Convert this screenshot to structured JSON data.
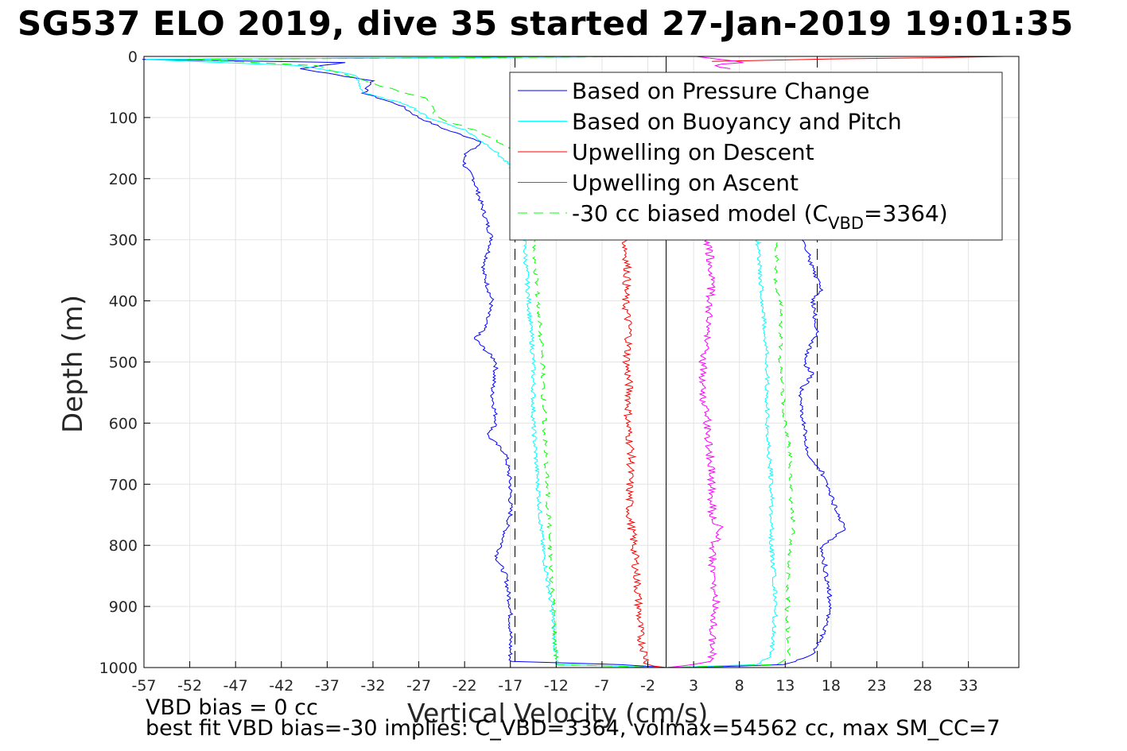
{
  "title": "SG537 ELO 2019, dive 35 started 27-Jan-2019 19:01:35",
  "notes": {
    "line1": "VBD bias = 0 cc",
    "line2": "best fit VBD bias=-30 implies: C_VBD=3364, volmax=54562 cc, max SM_CC=7"
  },
  "chart_data": {
    "type": "line",
    "xlabel": "Vertical Velocity (cm/s)",
    "ylabel": "Depth (m)",
    "xlim": [
      -57,
      38.5
    ],
    "ylim": [
      0,
      1000
    ],
    "y_reversed": true,
    "xticks": [
      -57,
      -52,
      -47,
      -42,
      -37,
      -32,
      -27,
      -22,
      -17,
      -12,
      -7,
      -2,
      3,
      8,
      13,
      18,
      23,
      28,
      33
    ],
    "yticks": [
      0,
      100,
      200,
      300,
      400,
      500,
      600,
      700,
      800,
      900,
      1000
    ],
    "grid": true,
    "legend_position": "top-right",
    "reference_lines": {
      "dashed_x": [
        -16.5,
        16.5
      ],
      "solid_x": [
        0
      ]
    },
    "legend": [
      {
        "label": "Based on Pressure Change",
        "color": "#0000ff",
        "dash": false
      },
      {
        "label": "Based on Buoyancy and Pitch",
        "color": "#00ffff",
        "dash": false
      },
      {
        "label": "Upwelling on Descent",
        "color": "#ff0000",
        "dash": false
      },
      {
        "label": "Upwelling on Ascent",
        "color": "#ff00ff",
        "dash": false
      },
      {
        "label": "-30 cc biased model (C",
        "sub": "VBD",
        "suffix": "=3364)",
        "color": "#00ff00",
        "dash": true
      }
    ],
    "series": [
      {
        "name": "Based on Pressure Change",
        "color": "#0000ff",
        "dash": false,
        "descent": [
          [
            0,
            0
          ],
          [
            5,
            -57
          ],
          [
            10,
            -35
          ],
          [
            20,
            -40
          ],
          [
            40,
            -32
          ],
          [
            60,
            -33
          ],
          [
            80,
            -29
          ],
          [
            100,
            -27
          ],
          [
            120,
            -24
          ],
          [
            140,
            -20
          ],
          [
            160,
            -22
          ],
          [
            180,
            -22
          ],
          [
            200,
            -21
          ],
          [
            250,
            -20
          ],
          [
            300,
            -19
          ],
          [
            350,
            -20
          ],
          [
            400,
            -19
          ],
          [
            450,
            -20
          ],
          [
            460,
            -21
          ],
          [
            500,
            -18.5
          ],
          [
            550,
            -19
          ],
          [
            600,
            -18.5
          ],
          [
            620,
            -19.5
          ],
          [
            650,
            -17.5
          ],
          [
            700,
            -17
          ],
          [
            750,
            -17
          ],
          [
            800,
            -18
          ],
          [
            820,
            -18.5
          ],
          [
            850,
            -17.5
          ],
          [
            900,
            -17
          ],
          [
            950,
            -17
          ],
          [
            990,
            -17
          ],
          [
            995,
            -5
          ],
          [
            1000,
            0
          ]
        ],
        "ascent": [
          [
            1000,
            0
          ],
          [
            998,
            7
          ],
          [
            995,
            13
          ],
          [
            980,
            16
          ],
          [
            950,
            17
          ],
          [
            900,
            18
          ],
          [
            850,
            17.5
          ],
          [
            800,
            17
          ],
          [
            775,
            19.5
          ],
          [
            740,
            18.5
          ],
          [
            700,
            17.5
          ],
          [
            680,
            17
          ],
          [
            650,
            15.5
          ],
          [
            600,
            15
          ],
          [
            550,
            14.5
          ],
          [
            520,
            16
          ],
          [
            500,
            15
          ],
          [
            450,
            16.5
          ],
          [
            400,
            16
          ],
          [
            380,
            17
          ],
          [
            350,
            16
          ],
          [
            320,
            15.5
          ],
          [
            300,
            14.8
          ]
        ]
      },
      {
        "name": "Based on Buoyancy and Pitch",
        "color": "#00ffff",
        "dash": false,
        "descent": [
          [
            0,
            0
          ],
          [
            5,
            -57
          ],
          [
            15,
            -40
          ],
          [
            30,
            -34
          ],
          [
            60,
            -33
          ],
          [
            80,
            -28
          ],
          [
            100,
            -26
          ],
          [
            120,
            -22
          ],
          [
            150,
            -19
          ],
          [
            180,
            -17
          ],
          [
            200,
            -16.5
          ],
          [
            250,
            -16
          ],
          [
            300,
            -15.5
          ],
          [
            400,
            -15
          ],
          [
            500,
            -14.5
          ],
          [
            600,
            -14.5
          ],
          [
            700,
            -14
          ],
          [
            800,
            -13.5
          ],
          [
            850,
            -13
          ],
          [
            900,
            -12.5
          ],
          [
            950,
            -12.2
          ],
          [
            995,
            -12
          ],
          [
            1000,
            0
          ]
        ],
        "ascent": [
          [
            1000,
            0
          ],
          [
            995,
            10
          ],
          [
            980,
            11.5
          ],
          [
            900,
            12
          ],
          [
            800,
            11.5
          ],
          [
            700,
            11.5
          ],
          [
            600,
            11
          ],
          [
            500,
            11
          ],
          [
            400,
            10.5
          ],
          [
            300,
            10
          ]
        ]
      },
      {
        "name": "Upwelling on Descent",
        "color": "#ff0000",
        "dash": false,
        "descent": [
          [
            300,
            -4.5
          ],
          [
            350,
            -4.2
          ],
          [
            400,
            -4.5
          ],
          [
            450,
            -4
          ],
          [
            500,
            -4.3
          ],
          [
            550,
            -4
          ],
          [
            600,
            -4.2
          ],
          [
            650,
            -3.8
          ],
          [
            700,
            -4
          ],
          [
            750,
            -4
          ],
          [
            800,
            -3.5
          ],
          [
            850,
            -3.2
          ],
          [
            900,
            -3
          ],
          [
            950,
            -2.8
          ],
          [
            995,
            -2
          ],
          [
            1000,
            0
          ]
        ],
        "top": [
          [
            0,
            37
          ],
          [
            2,
            30
          ],
          [
            4,
            18
          ],
          [
            6,
            12
          ],
          [
            8,
            5
          ]
        ]
      },
      {
        "name": "Upwelling on Ascent",
        "color": "#ff00ff",
        "dash": false,
        "ascent": [
          [
            1000,
            0
          ],
          [
            995,
            3
          ],
          [
            990,
            5
          ],
          [
            950,
            5
          ],
          [
            900,
            5.5
          ],
          [
            850,
            5
          ],
          [
            800,
            5.2
          ],
          [
            775,
            6
          ],
          [
            750,
            5
          ],
          [
            700,
            5
          ],
          [
            650,
            4.8
          ],
          [
            600,
            4.5
          ],
          [
            550,
            4
          ],
          [
            500,
            4
          ],
          [
            450,
            4.5
          ],
          [
            400,
            4.8
          ],
          [
            350,
            5
          ],
          [
            300,
            4.5
          ]
        ],
        "top": [
          [
            0,
            3
          ],
          [
            5,
            6
          ],
          [
            10,
            8
          ],
          [
            15,
            5
          ],
          [
            20,
            7
          ]
        ]
      },
      {
        "name": "-30 cc biased model",
        "color": "#00ff00",
        "dash": true,
        "descent": [
          [
            0,
            0
          ],
          [
            5,
            -52
          ],
          [
            15,
            -38
          ],
          [
            40,
            -33
          ],
          [
            70,
            -26
          ],
          [
            100,
            -25
          ],
          [
            120,
            -21
          ],
          [
            150,
            -17
          ],
          [
            180,
            -15
          ],
          [
            200,
            -15
          ],
          [
            300,
            -14.5
          ],
          [
            400,
            -14
          ],
          [
            500,
            -13.5
          ],
          [
            600,
            -13.3
          ],
          [
            700,
            -13
          ],
          [
            800,
            -12.7
          ],
          [
            900,
            -12.3
          ],
          [
            995,
            -12
          ],
          [
            1000,
            0
          ]
        ],
        "ascent": [
          [
            1000,
            0
          ],
          [
            995,
            12
          ],
          [
            980,
            13.5
          ],
          [
            900,
            13.2
          ],
          [
            800,
            13.5
          ],
          [
            775,
            14
          ],
          [
            700,
            13.5
          ],
          [
            650,
            13.5
          ],
          [
            600,
            13
          ],
          [
            500,
            12.5
          ],
          [
            400,
            12.5
          ],
          [
            380,
            12
          ],
          [
            300,
            12
          ]
        ]
      }
    ]
  }
}
